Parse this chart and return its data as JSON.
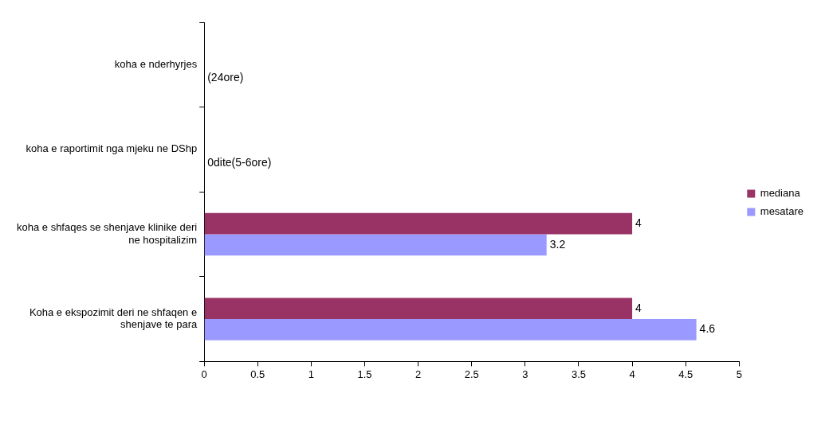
{
  "chart_data": {
    "type": "bar",
    "orientation": "horizontal",
    "categories": [
      "koha e nderhyrjes",
      "koha e raportimit nga mjeku ne DShp",
      "koha e shfaqes se shenjave klinike deri ne hospitalizim",
      "Koha e ekspozimit deri ne shfaqen e shenjave te para"
    ],
    "series": [
      {
        "name": "mediana",
        "color": "#993366",
        "values": [
          null,
          null,
          4,
          4
        ]
      },
      {
        "name": "mesatare",
        "color": "#9999ff",
        "values": [
          null,
          null,
          3.2,
          4.6
        ]
      }
    ],
    "data_labels": true,
    "annotations": [
      "(24ore)",
      "0dite(5-6ore)"
    ],
    "xlim": [
      0,
      5
    ],
    "xticks": [
      0,
      0.5,
      1,
      1.5,
      2,
      2.5,
      3,
      3.5,
      4,
      4.5,
      5
    ],
    "grid": false,
    "legend": "right"
  }
}
